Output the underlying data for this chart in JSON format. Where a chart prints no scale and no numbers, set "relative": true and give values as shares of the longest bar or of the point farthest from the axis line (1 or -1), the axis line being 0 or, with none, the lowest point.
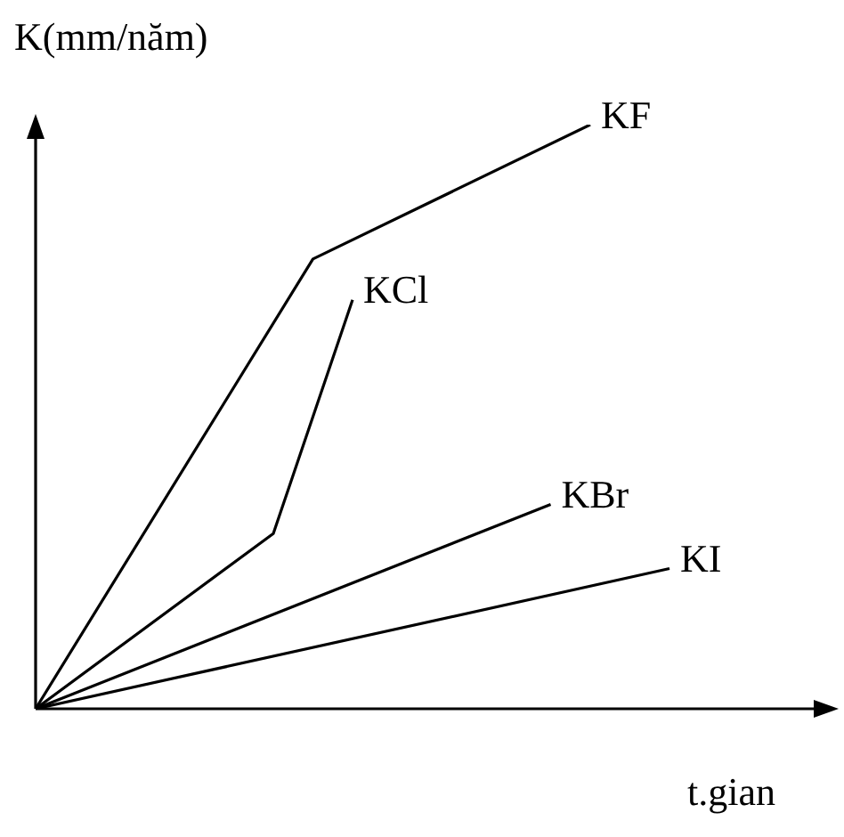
{
  "chart_data": {
    "type": "line",
    "relative": true,
    "xlabel": "t.gian",
    "ylabel": "K(mm/năm)",
    "legend": false,
    "marker": "none",
    "categories": [
      null,
      null,
      null,
      null,
      null,
      null,
      null,
      null,
      null,
      null,
      null,
      null,
      null,
      null,
      null,
      null,
      null,
      null,
      null,
      null,
      null
    ],
    "series": [
      {
        "name": "KF",
        "color": "#000000",
        "values": [
          0,
          null,
          null,
          null,
          null,
          null,
          null,
          0.77,
          null,
          null,
          null,
          null,
          null,
          null,
          1,
          null,
          null,
          null,
          null,
          null,
          null
        ]
      },
      {
        "name": "KCl",
        "color": "#000000",
        "values": [
          0,
          null,
          null,
          null,
          null,
          null,
          0.3,
          null,
          0.7,
          null,
          null,
          null,
          null,
          null,
          null,
          null,
          null,
          null,
          null,
          null,
          null
        ]
      },
      {
        "name": "KBr",
        "color": "#000000",
        "values": [
          0,
          null,
          null,
          null,
          null,
          null,
          null,
          null,
          null,
          null,
          null,
          null,
          null,
          0.35,
          null,
          null,
          null,
          null,
          null,
          null,
          null
        ]
      },
      {
        "name": "KI",
        "color": "#000000",
        "values": [
          0,
          null,
          null,
          null,
          null,
          null,
          null,
          null,
          null,
          null,
          null,
          null,
          null,
          null,
          null,
          null,
          0.24,
          null,
          null,
          null,
          null
        ]
      }
    ]
  }
}
